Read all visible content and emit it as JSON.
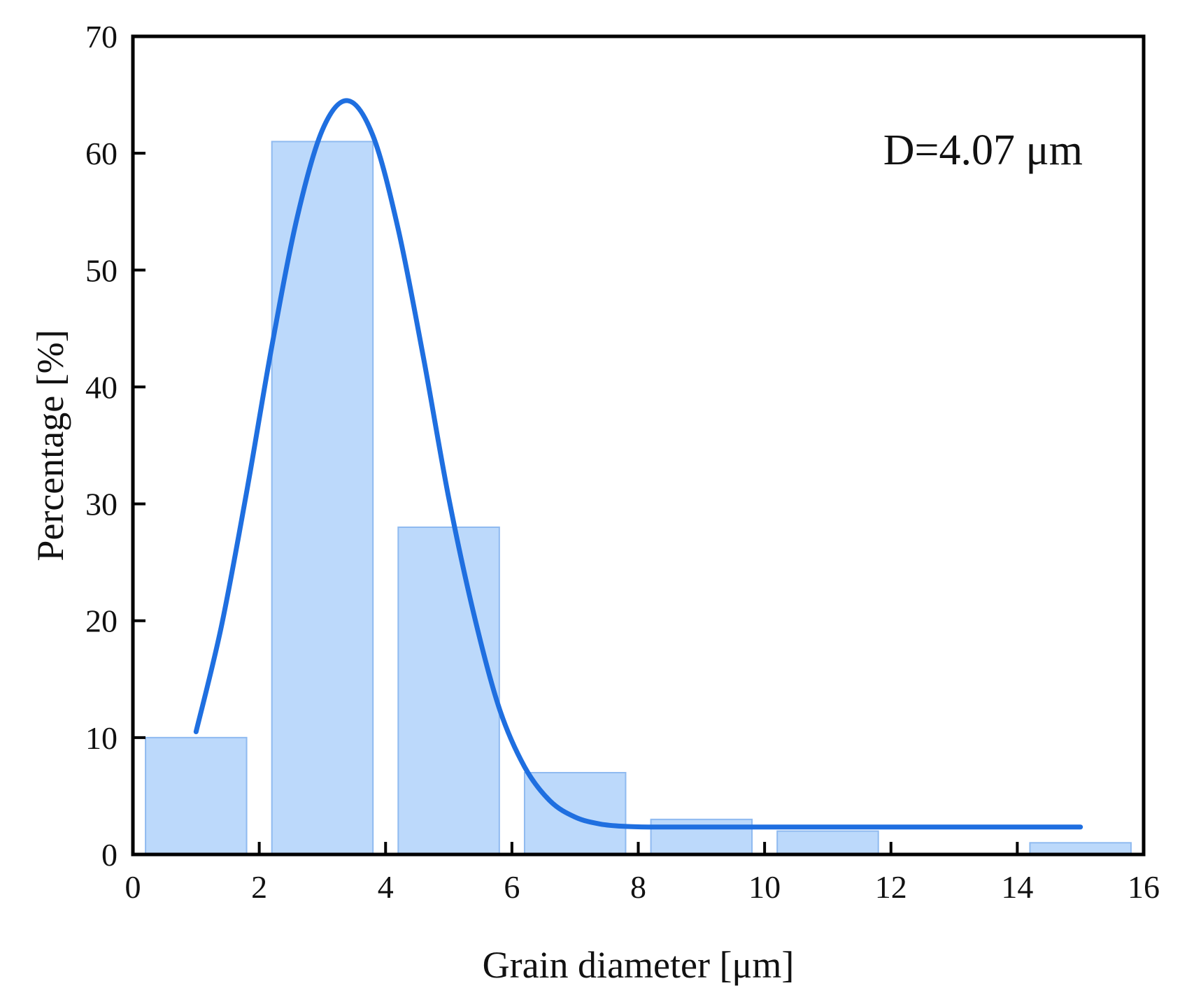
{
  "chart_data": {
    "type": "bar",
    "xlabel": "Grain diameter [μm]",
    "ylabel": "Percentage [%]",
    "xlim": [
      0,
      16
    ],
    "ylim": [
      0,
      70
    ],
    "xticks": [
      0,
      2,
      4,
      6,
      8,
      10,
      12,
      14,
      16
    ],
    "yticks": [
      0,
      10,
      20,
      30,
      40,
      50,
      60,
      70
    ],
    "grid": false,
    "annotation": "D=4.07 μm",
    "bars": [
      {
        "x0": 0.2,
        "x1": 1.8,
        "value": 10
      },
      {
        "x0": 2.2,
        "x1": 3.8,
        "value": 61
      },
      {
        "x0": 4.2,
        "x1": 5.8,
        "value": 28
      },
      {
        "x0": 6.2,
        "x1": 7.8,
        "value": 7
      },
      {
        "x0": 8.2,
        "x1": 9.8,
        "value": 3
      },
      {
        "x0": 10.2,
        "x1": 11.8,
        "value": 2
      },
      {
        "x0": 14.2,
        "x1": 15.8,
        "value": 1
      }
    ],
    "fit_curve": {
      "x": [
        1.0,
        1.4,
        1.8,
        2.2,
        2.6,
        3.0,
        3.4,
        3.8,
        4.2,
        4.6,
        5.0,
        5.4,
        5.8,
        6.2,
        6.6,
        7.0,
        7.4,
        7.8,
        8.2,
        9.0,
        10.0,
        11.0,
        12.0,
        13.0,
        14.0,
        15.0
      ],
      "y": [
        10.5,
        19.5,
        31.0,
        43.5,
        54.5,
        62.0,
        64.5,
        61.5,
        53.5,
        42.5,
        30.5,
        20.5,
        12.5,
        7.5,
        4.6,
        3.2,
        2.6,
        2.4,
        2.35,
        2.35,
        2.35,
        2.35,
        2.35,
        2.35,
        2.35,
        2.35
      ]
    },
    "colors": {
      "bar_fill": "#bcd9fb",
      "bar_stroke": "#8fbaf0",
      "curve": "#1f6fe0",
      "axis": "#000000"
    }
  }
}
